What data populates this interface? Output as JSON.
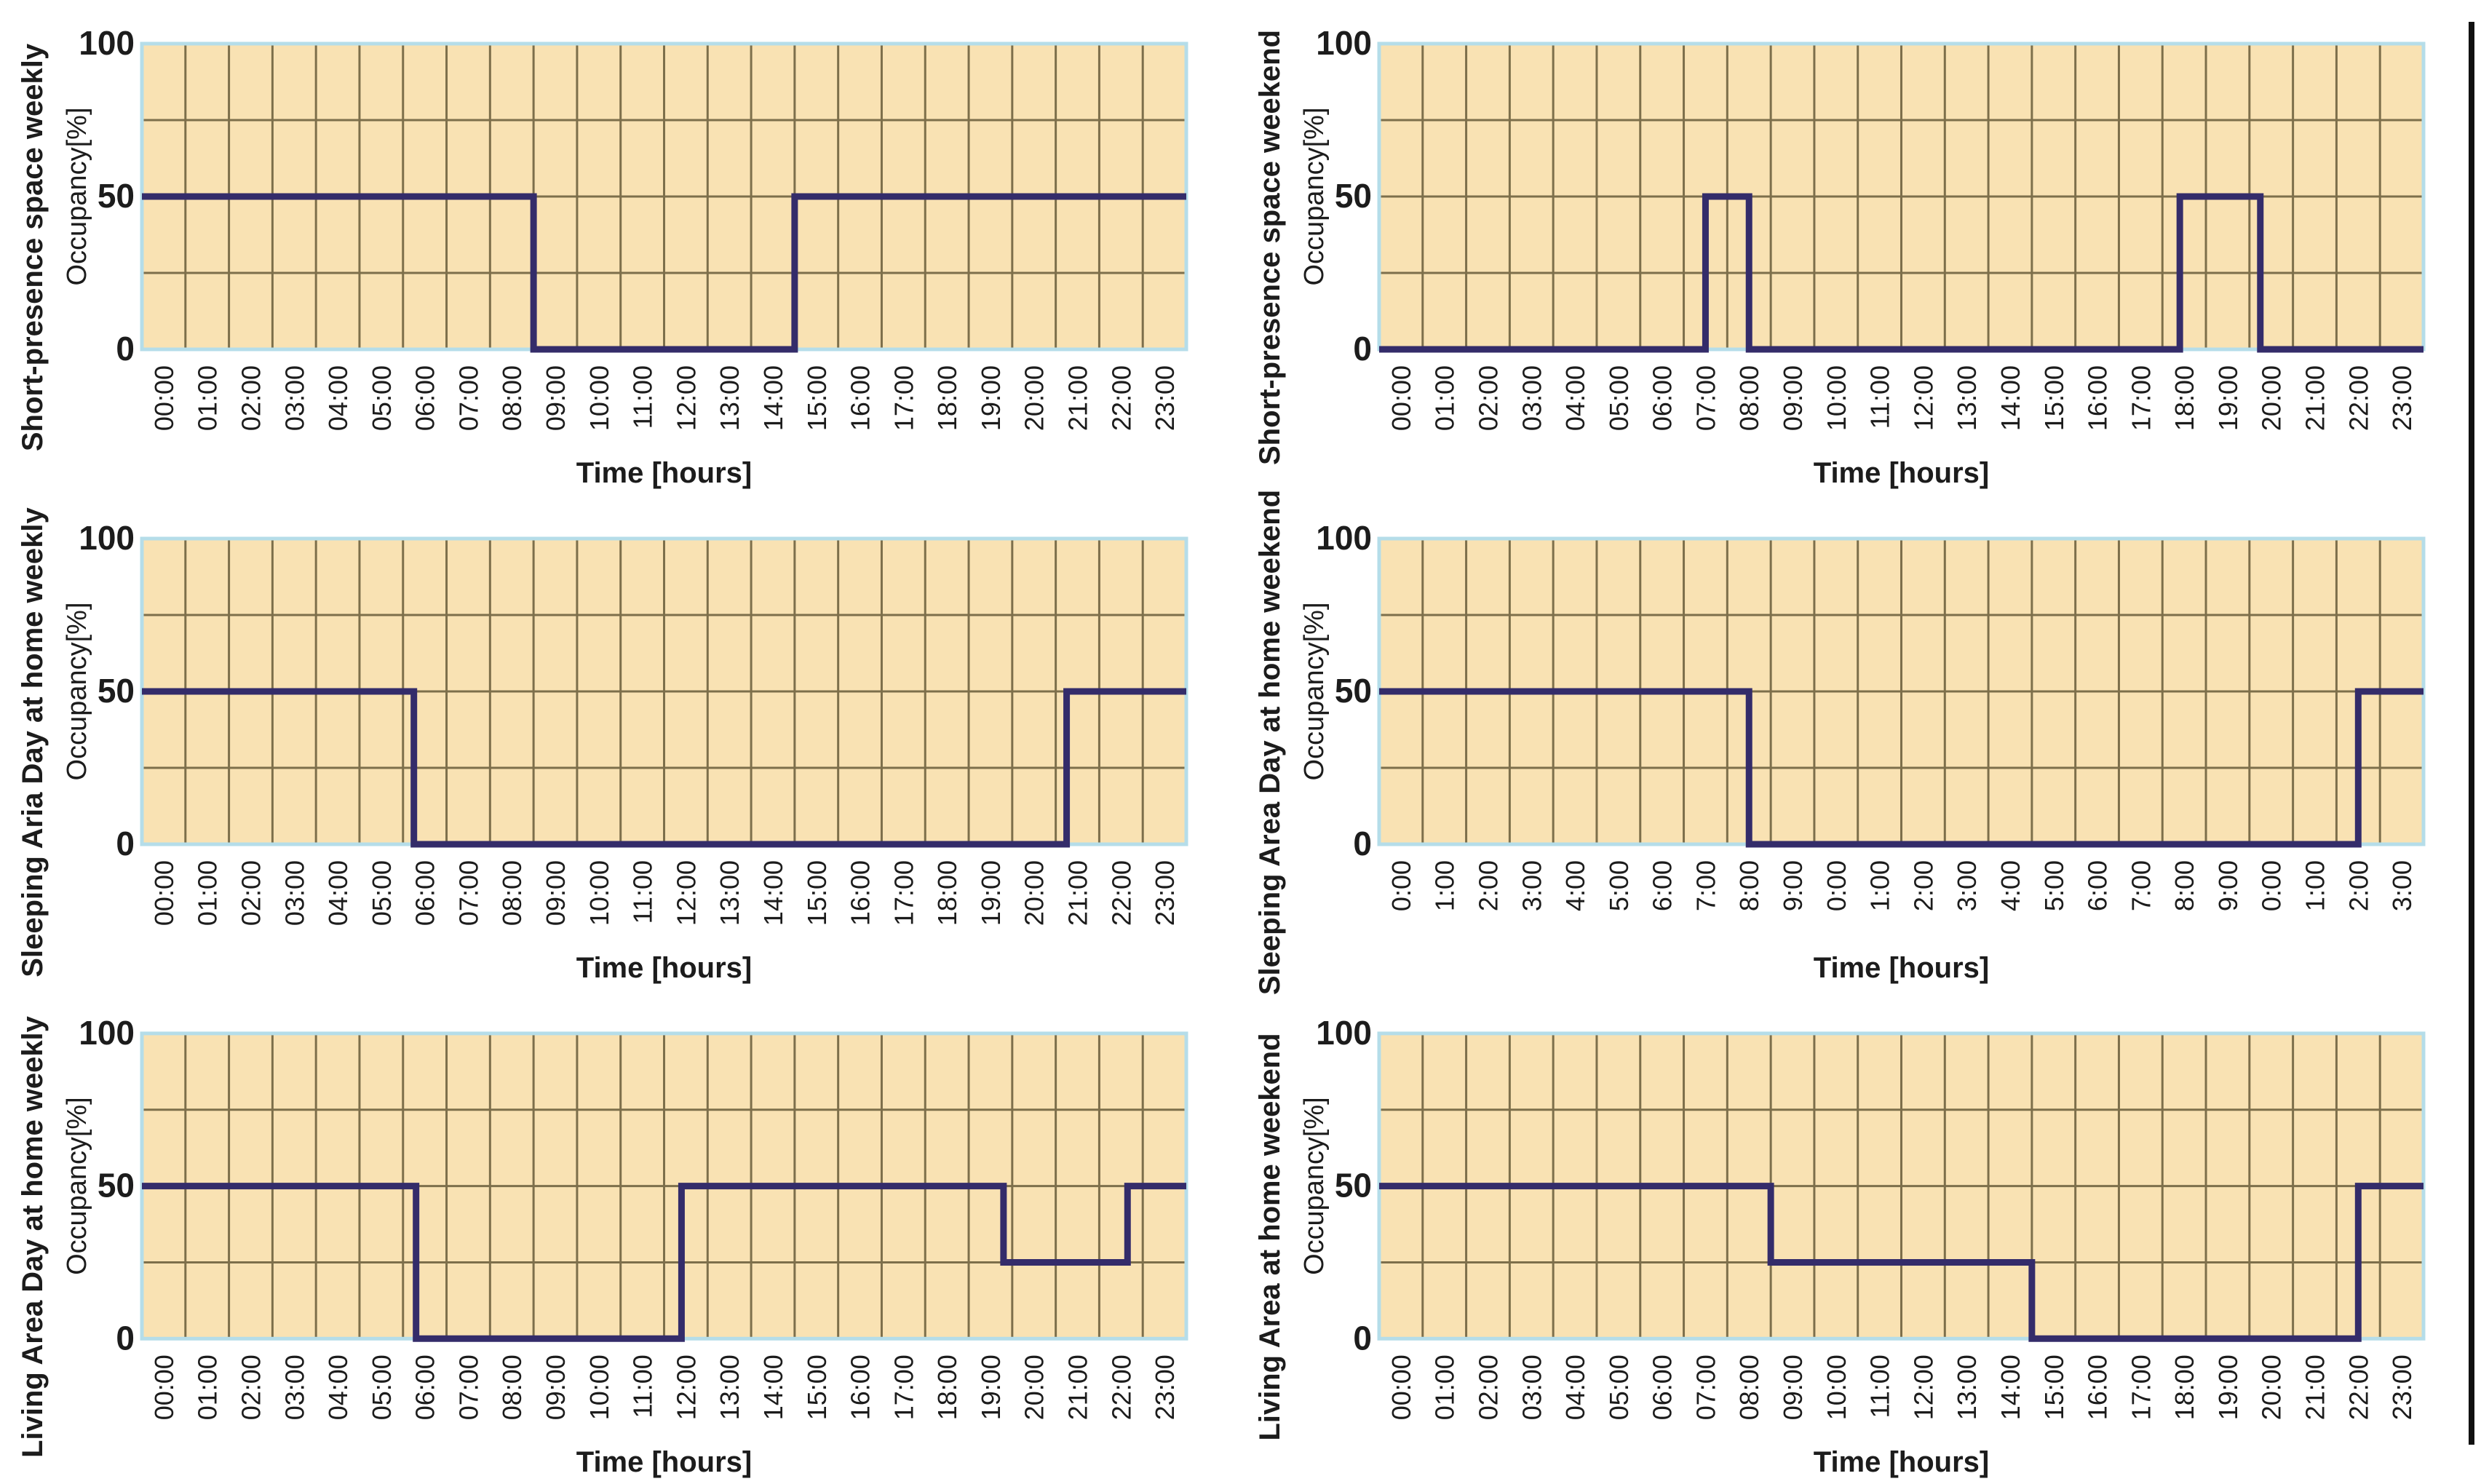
{
  "figure": {
    "description_text": "",
    "layout": {
      "rows": 3,
      "cols": 2,
      "legend": "none",
      "grid": "on"
    }
  },
  "style": {
    "plot_bg": "#f9e2b3",
    "grid_color": "#7d6f4b",
    "border_color": "#b5dde9",
    "line_color": "#342c6a",
    "text_color": "#1c1c1c",
    "page_bg": "#ffffff",
    "rule_color": "#111111"
  },
  "chart_data": [
    {
      "type": "line",
      "title": "Short-presence space weekly",
      "ylabel": "Occupancy[%]",
      "xlabel": "Time [hours]",
      "ylim": [
        0,
        100
      ],
      "y_ticks": [
        100,
        50,
        0
      ],
      "x_tick_labels": [
        "00:00",
        "01:00",
        "02:00",
        "03:00",
        "04:00",
        "05:00",
        "06:00",
        "07:00",
        "08:00",
        "09:00",
        "10:00",
        "11:00",
        "12:00",
        "13:00",
        "14:00",
        "15:00",
        "16:00",
        "17:00",
        "18:00",
        "19:00",
        "20:00",
        "21:00",
        "22:00",
        "23:00"
      ],
      "segments": [
        {
          "from": 0,
          "to": 9,
          "value": 50
        },
        {
          "from": 9,
          "to": 15,
          "value": 0
        },
        {
          "from": 15,
          "to": 24,
          "value": 50
        }
      ]
    },
    {
      "type": "line",
      "title": "Short-presence space weekend",
      "ylabel": "Occupancy[%]",
      "xlabel": "Time [hours]",
      "ylim": [
        0,
        100
      ],
      "y_ticks": [
        100,
        50,
        0
      ],
      "x_tick_labels": [
        "00:00",
        "01:00",
        "02:00",
        "03:00",
        "04:00",
        "05:00",
        "06:00",
        "07:00",
        "08:00",
        "09:00",
        "10:00",
        "11:00",
        "12:00",
        "13:00",
        "14:00",
        "15:00",
        "16:00",
        "17:00",
        "18:00",
        "19:00",
        "20:00",
        "21:00",
        "22:00",
        "23:00"
      ],
      "segments": [
        {
          "from": 0,
          "to": 7.5,
          "value": 0
        },
        {
          "from": 7.5,
          "to": 8.5,
          "value": 50
        },
        {
          "from": 8.5,
          "to": 18.4,
          "value": 0
        },
        {
          "from": 18.4,
          "to": 20.25,
          "value": 50
        },
        {
          "from": 20.25,
          "to": 24,
          "value": 0
        }
      ]
    },
    {
      "type": "line",
      "title": "Sleeping Aria Day at home weekly",
      "ylabel": "Occupancy[%]",
      "xlabel": "Time [hours]",
      "ylim": [
        0,
        100
      ],
      "y_ticks": [
        100,
        50,
        0
      ],
      "x_tick_labels": [
        "00:00",
        "01:00",
        "02:00",
        "03:00",
        "04:00",
        "05:00",
        "06:00",
        "07:00",
        "08:00",
        "09:00",
        "10:00",
        "11:00",
        "12:00",
        "13:00",
        "14:00",
        "15:00",
        "16:00",
        "17:00",
        "18:00",
        "19:00",
        "20:00",
        "21:00",
        "22:00",
        "23:00"
      ],
      "segments": [
        {
          "from": 0,
          "to": 6.25,
          "value": 50
        },
        {
          "from": 6.25,
          "to": 21.25,
          "value": 0
        },
        {
          "from": 21.25,
          "to": 24,
          "value": 50
        }
      ]
    },
    {
      "type": "line",
      "title": "Sleeping Area Day at home weekend",
      "ylabel": "Occupancy[%]",
      "xlabel": "Time [hours]",
      "ylim": [
        0,
        100
      ],
      "y_ticks": [
        100,
        50,
        0
      ],
      "x_tick_labels": [
        "0:00",
        "1:00",
        "2:00",
        "3:00",
        "4:00",
        "5:00",
        "6:00",
        "7:00",
        "8:00",
        "9:00",
        "0:00",
        "1:00",
        "2:00",
        "3:00",
        "4:00",
        "5:00",
        "6:00",
        "7:00",
        "8:00",
        "9:00",
        "0:00",
        "1:00",
        "2:00",
        "3:00"
      ],
      "segments": [
        {
          "from": 0,
          "to": 8.5,
          "value": 50
        },
        {
          "from": 8.5,
          "to": 22.5,
          "value": 0
        },
        {
          "from": 22.5,
          "to": 24,
          "value": 50
        }
      ]
    },
    {
      "type": "line",
      "title": "Living Area Day at home weekly",
      "ylabel": "Occupancy[%]",
      "xlabel": "Time [hours]",
      "ylim": [
        0,
        100
      ],
      "y_ticks": [
        100,
        50,
        0
      ],
      "x_tick_labels": [
        "00:00",
        "01:00",
        "02:00",
        "03:00",
        "04:00",
        "05:00",
        "06:00",
        "07:00",
        "08:00",
        "09:00",
        "10:00",
        "11:00",
        "12:00",
        "13:00",
        "14:00",
        "15:00",
        "16:00",
        "17:00",
        "18:00",
        "19:00",
        "20:00",
        "21:00",
        "22:00",
        "23:00"
      ],
      "segments": [
        {
          "from": 0,
          "to": 6.3,
          "value": 50
        },
        {
          "from": 6.3,
          "to": 12.4,
          "value": 0
        },
        {
          "from": 12.4,
          "to": 19.8,
          "value": 50
        },
        {
          "from": 19.8,
          "to": 22.65,
          "value": 25
        },
        {
          "from": 22.65,
          "to": 24,
          "value": 50
        }
      ]
    },
    {
      "type": "line",
      "title": "Living Area at home weekend",
      "ylabel": "Occupancy[%]",
      "xlabel": "Time [hours]",
      "ylim": [
        0,
        100
      ],
      "y_ticks": [
        100,
        50,
        0
      ],
      "x_tick_labels": [
        "00:00",
        "01:00",
        "02:00",
        "03:00",
        "04:00",
        "05:00",
        "06:00",
        "07:00",
        "08:00",
        "09:00",
        "10:00",
        "11:00",
        "12:00",
        "13:00",
        "14:00",
        "15:00",
        "16:00",
        "17:00",
        "18:00",
        "19:00",
        "20:00",
        "21:00",
        "22:00",
        "23:00"
      ],
      "segments": [
        {
          "from": 0,
          "to": 9,
          "value": 50
        },
        {
          "from": 9,
          "to": 15,
          "value": 25
        },
        {
          "from": 15,
          "to": 22.5,
          "value": 0
        },
        {
          "from": 22.5,
          "to": 24,
          "value": 50
        }
      ]
    }
  ]
}
